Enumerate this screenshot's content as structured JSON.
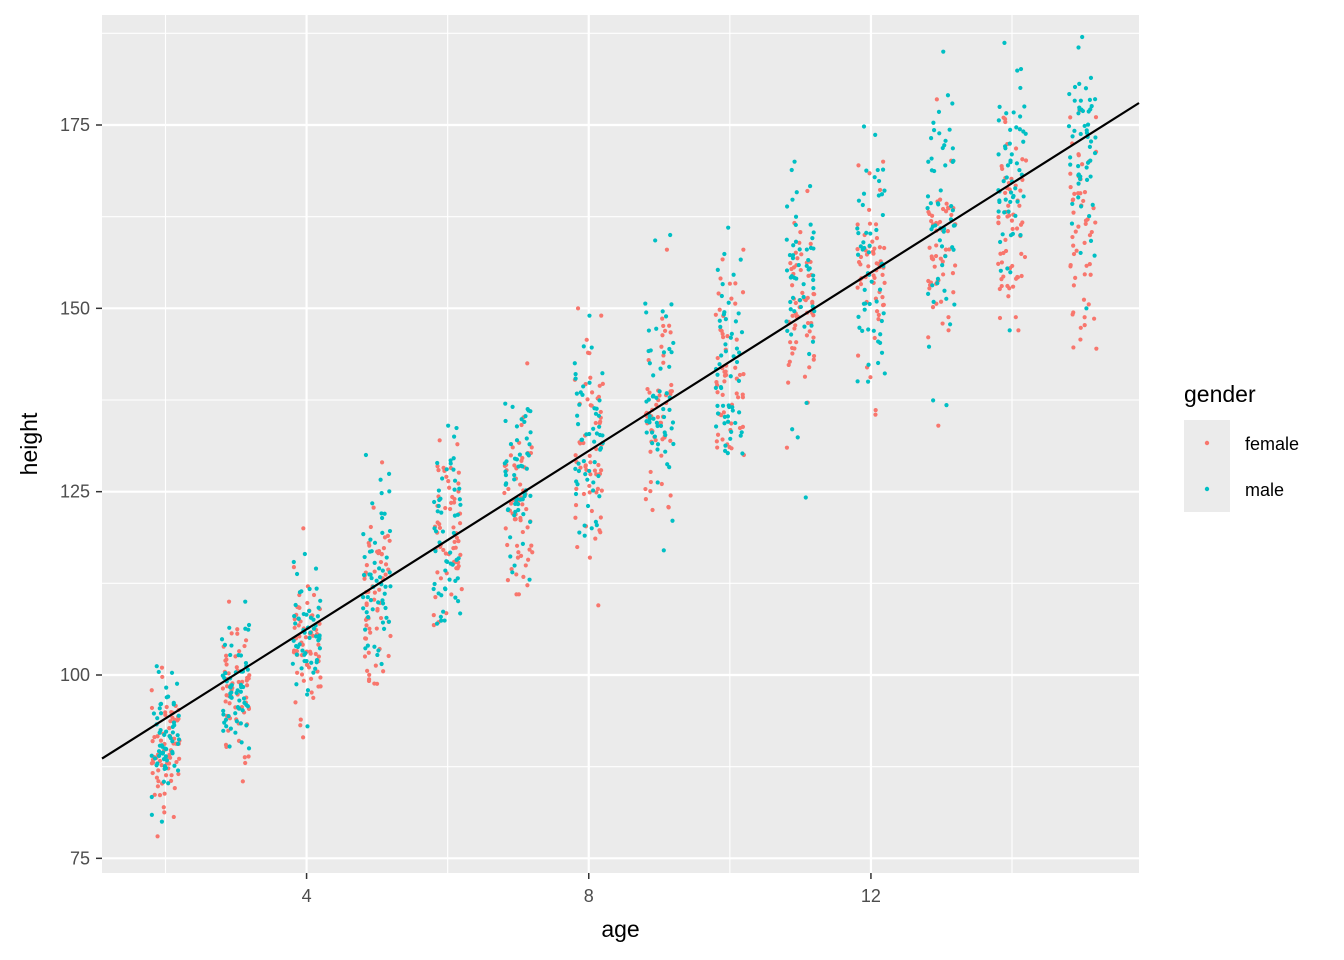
{
  "chart_data": {
    "type": "scatter",
    "xlabel": "age",
    "ylabel": "height",
    "xlim": [
      1.1,
      15.8
    ],
    "ylim": [
      73,
      190
    ],
    "x_ticks": [
      4,
      8,
      12
    ],
    "x_tick_labels": [
      "4",
      "8",
      "12"
    ],
    "x_minor_ticks": [
      2,
      6,
      10,
      14
    ],
    "y_ticks": [
      75,
      100,
      125,
      150,
      175
    ],
    "y_tick_labels": [
      "75",
      "100",
      "125",
      "150",
      "175"
    ],
    "y_minor_ticks": [
      87.5,
      112.5,
      137.5,
      162.5,
      187.5
    ],
    "grid": true,
    "jitter_width": 0.2,
    "legend": {
      "title": "gender",
      "placement": "right"
    },
    "series": [
      {
        "name": "female",
        "color": "#F8766D",
        "groups": [
          {
            "age": 2,
            "mean": 90,
            "sd": 4.2,
            "min": 78,
            "max": 101,
            "n": 70
          },
          {
            "age": 3,
            "mean": 97,
            "sd": 4.5,
            "min": 85.5,
            "max": 110,
            "n": 60
          },
          {
            "age": 4,
            "mean": 104,
            "sd": 5.0,
            "min": 91.5,
            "max": 120,
            "n": 60
          },
          {
            "age": 5,
            "mean": 111,
            "sd": 5.5,
            "min": 98.8,
            "max": 129,
            "n": 60
          },
          {
            "age": 6,
            "mean": 118,
            "sd": 6.0,
            "min": 106.8,
            "max": 132,
            "n": 60
          },
          {
            "age": 7,
            "mean": 124,
            "sd": 6.5,
            "min": 111,
            "max": 142.5,
            "n": 60
          },
          {
            "age": 8,
            "mean": 130,
            "sd": 7.0,
            "min": 109.5,
            "max": 150,
            "n": 60
          },
          {
            "age": 9,
            "mean": 136,
            "sd": 7.0,
            "min": 122.5,
            "max": 158,
            "n": 55
          },
          {
            "age": 10,
            "mean": 142,
            "sd": 7.0,
            "min": 130,
            "max": 158,
            "n": 55
          },
          {
            "age": 11,
            "mean": 150,
            "sd": 7.0,
            "min": 131,
            "max": 166,
            "n": 60
          },
          {
            "age": 12,
            "mean": 155,
            "sd": 6.5,
            "min": 135.5,
            "max": 170,
            "n": 55
          },
          {
            "age": 13,
            "mean": 158,
            "sd": 6.5,
            "min": 134,
            "max": 178.5,
            "n": 55
          },
          {
            "age": 14,
            "mean": 160,
            "sd": 7.0,
            "min": 147,
            "max": 176,
            "n": 60
          },
          {
            "age": 15,
            "mean": 160,
            "sd": 7.5,
            "min": 144.5,
            "max": 177,
            "n": 55
          }
        ]
      },
      {
        "name": "male",
        "color": "#00BFC4",
        "groups": [
          {
            "age": 2,
            "mean": 91,
            "sd": 4.0,
            "min": 80,
            "max": 101.2,
            "n": 60
          },
          {
            "age": 3,
            "mean": 99,
            "sd": 4.5,
            "min": 90,
            "max": 110,
            "n": 60
          },
          {
            "age": 4,
            "mean": 106,
            "sd": 5.0,
            "min": 93,
            "max": 116.5,
            "n": 55
          },
          {
            "age": 5,
            "mean": 113,
            "sd": 5.5,
            "min": 101.5,
            "max": 130,
            "n": 55
          },
          {
            "age": 6,
            "mean": 120,
            "sd": 6.0,
            "min": 107,
            "max": 134,
            "n": 55
          },
          {
            "age": 7,
            "mean": 126,
            "sd": 6.5,
            "min": 113,
            "max": 137,
            "n": 55
          },
          {
            "age": 8,
            "mean": 133,
            "sd": 7.0,
            "min": 119,
            "max": 149,
            "n": 55
          },
          {
            "age": 9,
            "mean": 137,
            "sd": 7.5,
            "min": 117,
            "max": 160,
            "n": 55
          },
          {
            "age": 10,
            "mean": 142,
            "sd": 7.5,
            "min": 130.2,
            "max": 161,
            "n": 55
          },
          {
            "age": 11,
            "mean": 150,
            "sd": 7.5,
            "min": 124.2,
            "max": 170,
            "n": 55
          },
          {
            "age": 12,
            "mean": 156,
            "sd": 8.0,
            "min": 140,
            "max": 174.8,
            "n": 55
          },
          {
            "age": 13,
            "mean": 164,
            "sd": 8.0,
            "min": 136.8,
            "max": 185,
            "n": 55
          },
          {
            "age": 14,
            "mean": 169,
            "sd": 8.0,
            "min": 147,
            "max": 186.2,
            "n": 55
          },
          {
            "age": 15,
            "mean": 172,
            "sd": 8.0,
            "min": 150,
            "max": 187,
            "n": 55
          }
        ]
      }
    ],
    "trend_line": {
      "color": "#000000",
      "x": [
        1.1,
        15.8
      ],
      "y": [
        88.6,
        178
      ]
    }
  }
}
